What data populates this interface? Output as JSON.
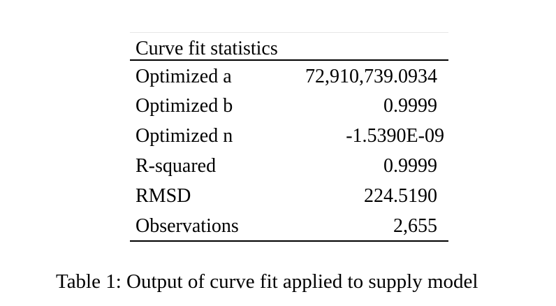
{
  "table": {
    "title": "Curve fit statistics",
    "rows": [
      {
        "label": "Optimized a",
        "value": "72,910,739.0934"
      },
      {
        "label": "Optimized b",
        "value": "0.9999"
      },
      {
        "label": "Optimized n",
        "value": "-1.5390E-09"
      },
      {
        "label": "R-squared",
        "value": "0.9999"
      },
      {
        "label": "RMSD",
        "value": "224.5190"
      },
      {
        "label": "Observations",
        "value": "2,655"
      }
    ]
  },
  "caption": "Table 1:  Output of curve fit applied to supply model"
}
